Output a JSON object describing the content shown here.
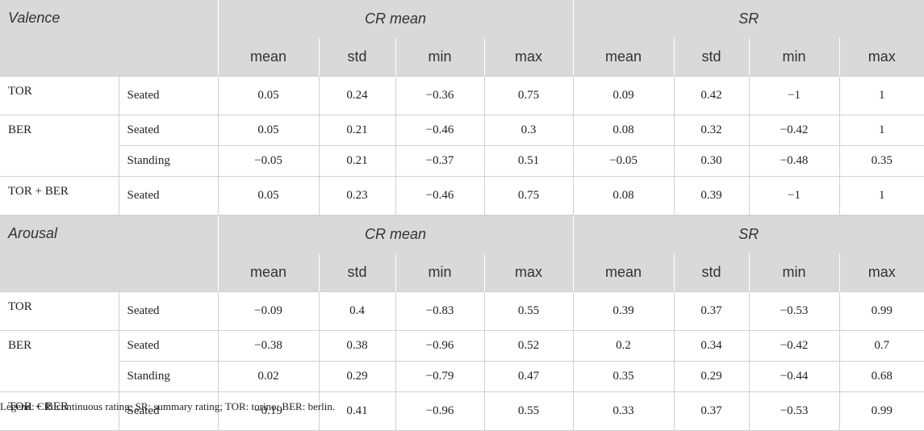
{
  "sections": [
    {
      "title": "Valence",
      "groups": [
        {
          "label": "CR mean",
          "columns": [
            "mean",
            "std",
            "min",
            "max"
          ]
        },
        {
          "label": "SR",
          "columns": [
            "mean",
            "std",
            "min",
            "max"
          ]
        }
      ],
      "rows": [
        {
          "dataset": "TOR",
          "condition": "Seated",
          "values": [
            "0.05",
            "0.24",
            "−0.36",
            "0.75",
            "0.09",
            "0.42",
            "−1",
            "1"
          ]
        },
        {
          "dataset": "BER",
          "condition": "Seated",
          "values": [
            "0.05",
            "0.21",
            "−0.46",
            "0.3",
            "0.08",
            "0.32",
            "−0.42",
            "1"
          ]
        },
        {
          "condition": "Standing",
          "values": [
            "−0.05",
            "0.21",
            "−0.37",
            "0.51",
            "−0.05",
            "0.30",
            "−0.48",
            "0.35"
          ]
        },
        {
          "dataset": "TOR + BER",
          "condition": "Seated",
          "values": [
            "0.05",
            "0.23",
            "−0.46",
            "0.75",
            "0.08",
            "0.39",
            "−1",
            "1"
          ]
        }
      ]
    },
    {
      "title": "Arousal",
      "groups": [
        {
          "label": "CR mean",
          "columns": [
            "mean",
            "std",
            "min",
            "max"
          ]
        },
        {
          "label": "SR",
          "columns": [
            "mean",
            "std",
            "min",
            "max"
          ]
        }
      ],
      "rows": [
        {
          "dataset": "TOR",
          "condition": "Seated",
          "values": [
            "−0.09",
            "0.4",
            "−0.83",
            "0.55",
            "0.39",
            "0.37",
            "−0.53",
            "0.99"
          ]
        },
        {
          "dataset": "BER",
          "condition": "Seated",
          "values": [
            "−0.38",
            "0.38",
            "−0.96",
            "0.52",
            "0.2",
            "0.34",
            "−0.42",
            "0.7"
          ]
        },
        {
          "condition": "Standing",
          "values": [
            "0.02",
            "0.29",
            "−0.79",
            "0.47",
            "0.35",
            "0.29",
            "−0.44",
            "0.68"
          ]
        },
        {
          "dataset": "TOR + BER",
          "condition": "Seated",
          "values": [
            "−0.19",
            "0.41",
            "−0.96",
            "0.55",
            "0.33",
            "0.37",
            "−0.53",
            "0.99"
          ]
        }
      ]
    }
  ],
  "legend": "Legend: CR: continuous rating; SR: summary rating; TOR: torino; BER: berlin."
}
